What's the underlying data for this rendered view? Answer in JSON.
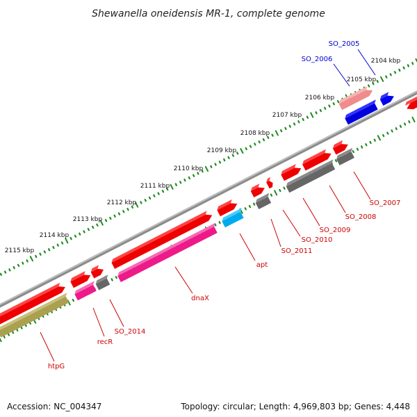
{
  "title": "Shewanella oneidensis MR-1, complete genome",
  "footer": {
    "accession": "Accession: NC_004347",
    "summary": "Topology: circular; Length: 4,969,803 bp; Genes: 4,448"
  },
  "colors": {
    "backbone": "#8c8c8c",
    "dots": "#1e8a1e",
    "gene_label_red": "#cc0000",
    "gene_label_blue": "#0000cc"
  },
  "ticks": [
    {
      "label": "2104 kbp"
    },
    {
      "label": "2105 kbp"
    },
    {
      "label": "2106 kbp"
    },
    {
      "label": "2107 kbp"
    },
    {
      "label": "2108 kbp"
    },
    {
      "label": "2109 kbp"
    },
    {
      "label": "2110 kbp"
    },
    {
      "label": "2111 kbp"
    },
    {
      "label": "2112 kbp"
    },
    {
      "label": "2113 kbp"
    },
    {
      "label": "2114 kbp"
    },
    {
      "label": "2115 kbp"
    }
  ],
  "gene_labels": [
    {
      "id": "SO_2005",
      "text": "SO_2005",
      "color": "#0000cc"
    },
    {
      "id": "SO_2006",
      "text": "SO_2006",
      "color": "#0000cc"
    },
    {
      "id": "SO_2007",
      "text": "SO_2007",
      "color": "#cc0000"
    },
    {
      "id": "SO_2008",
      "text": "SO_2008",
      "color": "#cc0000"
    },
    {
      "id": "SO_2009",
      "text": "SO_2009",
      "color": "#cc0000"
    },
    {
      "id": "SO_2010",
      "text": "SO_2010",
      "color": "#cc0000"
    },
    {
      "id": "SO_2011",
      "text": "SO_2011",
      "color": "#cc0000"
    },
    {
      "id": "apt",
      "text": "apt",
      "color": "#cc0000"
    },
    {
      "id": "dnaX",
      "text": "dnaX",
      "color": "#cc0000"
    },
    {
      "id": "SO_2014",
      "text": "SO_2014",
      "color": "#cc0000"
    },
    {
      "id": "recR",
      "text": "recR",
      "color": "#cc0000"
    },
    {
      "id": "htpG",
      "text": "htpG",
      "color": "#cc0000"
    }
  ]
}
